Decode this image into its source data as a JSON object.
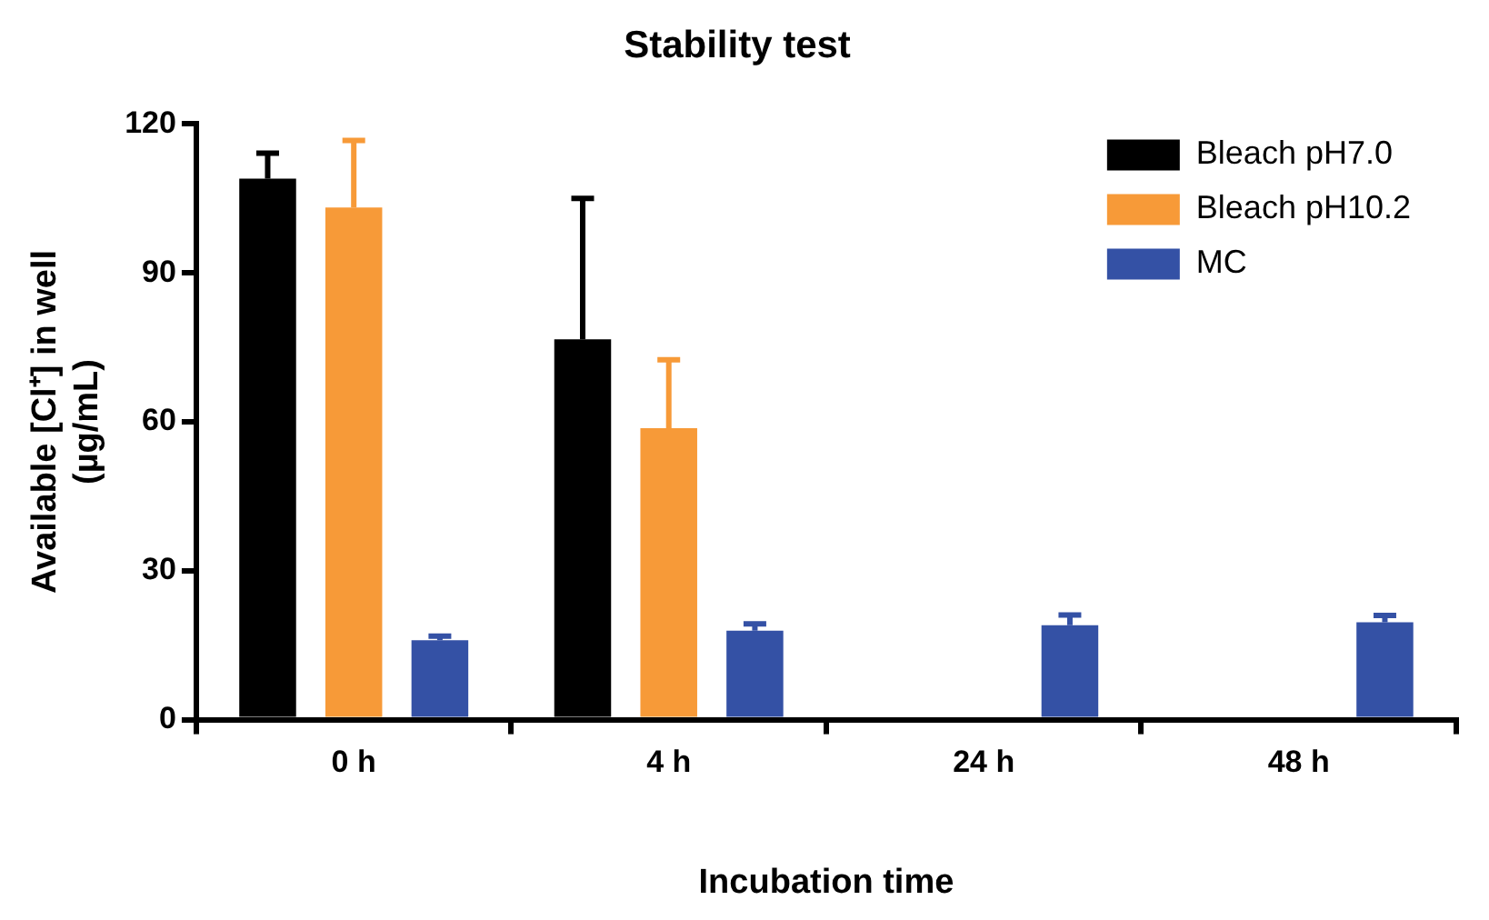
{
  "chart_data": {
    "type": "bar",
    "title": "Stability test",
    "xlabel": "Incubation time",
    "ylabel": "Available [Cl⁺] in well\n(µg/mL)",
    "categories": [
      "0 h",
      "4 h",
      "24 h",
      "48 h"
    ],
    "series": [
      {
        "name": "Bleach pH7.0",
        "color": "#000000",
        "values": [
          109,
          76.6,
          null,
          null
        ],
        "errors": [
          [
            109,
            114.1
          ],
          [
            76.6,
            105
          ],
          null,
          null
        ]
      },
      {
        "name": "Bleach pH10.2",
        "color": "#f79a38",
        "values": [
          103.2,
          58.7,
          null,
          null
        ],
        "errors": [
          [
            103.2,
            116.7
          ],
          [
            58.7,
            72.5
          ],
          null,
          null
        ]
      },
      {
        "name": "MC",
        "color": "#3451a5",
        "values": [
          16,
          17.9,
          19,
          19.6
        ],
        "errors": [
          [
            16,
            16.8
          ],
          [
            17.9,
            19.3
          ],
          [
            19,
            21.1
          ],
          [
            19.6,
            21
          ]
        ]
      }
    ],
    "ylim": [
      0,
      120
    ],
    "yticks": [
      0,
      30,
      60,
      90,
      120
    ],
    "grid": false,
    "legend": "top right"
  }
}
